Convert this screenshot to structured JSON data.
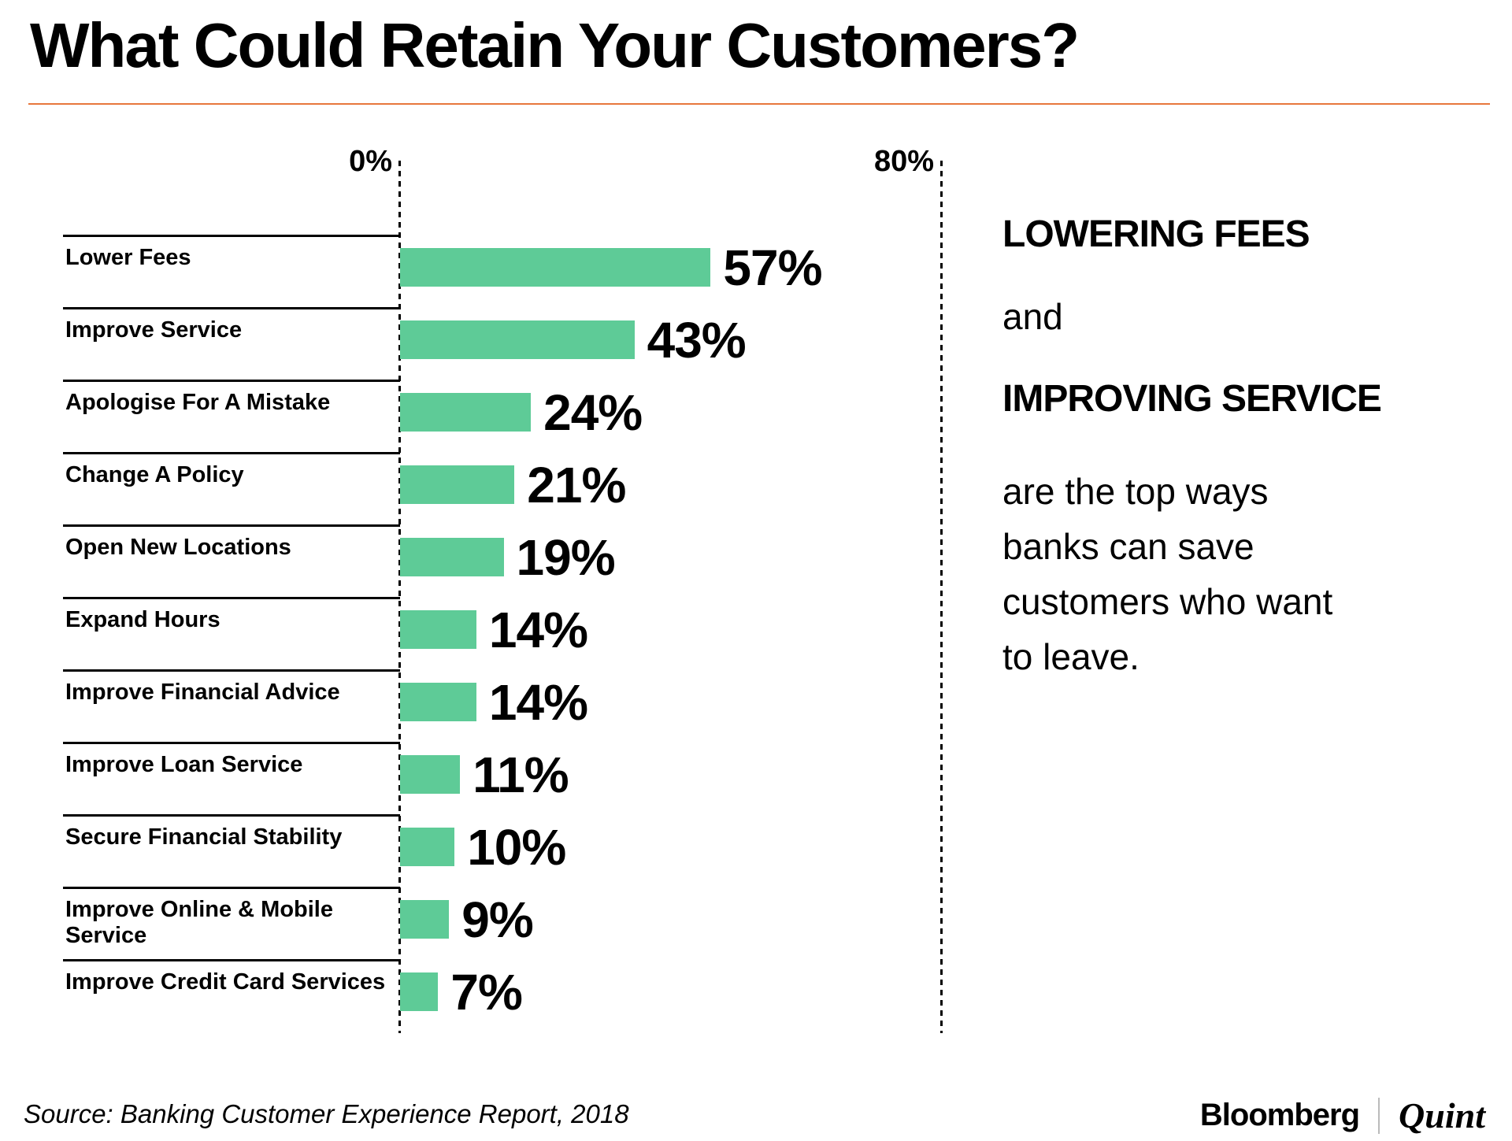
{
  "title": "What Could Retain Your Customers?",
  "chart_data": {
    "type": "bar",
    "orientation": "horizontal",
    "title": "What Could Retain Your Customers?",
    "categories": [
      "Lower Fees",
      "Improve Service",
      "Apologise For A Mistake",
      "Change A Policy",
      "Open New Locations",
      "Expand Hours",
      "Improve Financial Advice",
      "Improve Loan Service",
      "Secure Financial Stability",
      "Improve Online & Mobile Service",
      "Improve Credit Card Services"
    ],
    "values": [
      57,
      43,
      24,
      21,
      19,
      14,
      14,
      11,
      10,
      9,
      7
    ],
    "value_labels": [
      "57%",
      "43%",
      "24%",
      "21%",
      "19%",
      "14%",
      "14%",
      "11%",
      "10%",
      "9%",
      "7%"
    ],
    "xlim": [
      0,
      80
    ],
    "axis_ticks": [
      "0%",
      "80%"
    ],
    "grid": "dashed vertical lines at 0% and 80%",
    "legend": "none",
    "bar_color": "#5ecb97"
  },
  "annotation": {
    "emphasis1": "LOWERING FEES",
    "connector": "and",
    "emphasis2": "IMPROVING SERVICE",
    "body": "are the top ways banks can save customers who want to leave."
  },
  "footer": {
    "source": "Source: Banking Customer Experience Report, 2018",
    "brand_left": "Bloomberg",
    "brand_right": "Quint"
  },
  "colors": {
    "bar": "#5ecb97",
    "accent_line": "#e8773d",
    "text": "#000000",
    "brand_separator": "#bbbbbb"
  }
}
